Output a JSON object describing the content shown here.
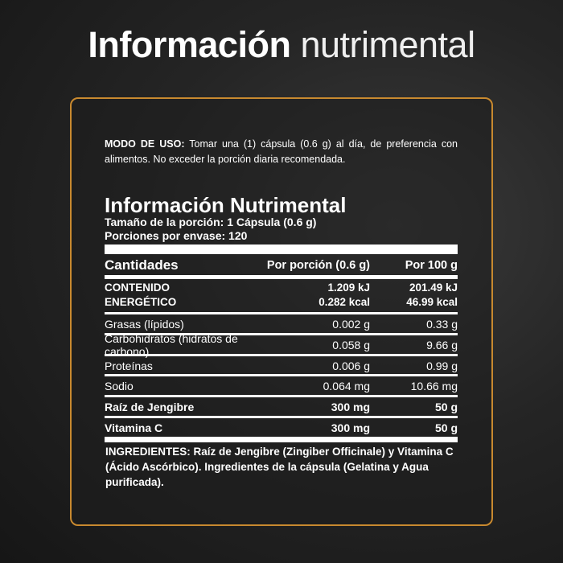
{
  "title": {
    "bold": "Información",
    "light": "nutrimental"
  },
  "accent_color": "#c8892f",
  "usage": {
    "label": "MODO DE USO:",
    "text": " Tomar una (1) cápsula (0.6 g) al día, de preferencia con alimentos. No exceder la porción diaria recomendada."
  },
  "label": {
    "heading": "Información Nutrimental",
    "serving_size": "Tamaño de la porción: 1 Cápsula (0.6 g)",
    "servings": "Porciones por envase: 120",
    "columns": [
      "Cantidades",
      "Por porción (0.6 g)",
      "Por 100 g"
    ],
    "energy": {
      "name1": "CONTENIDO",
      "name2": "ENERGÉTICO",
      "a1": "1.209 kJ",
      "a2": "0.282 kcal",
      "b1": "201.49 kJ",
      "b2": "46.99 kcal"
    },
    "rows": [
      {
        "name": "Grasas (lípidos)",
        "per_serving": "0.002 g",
        "per_100": "0.33 g"
      },
      {
        "name": "Carbohidratos (hidratos de carbono)",
        "per_serving": "0.058 g",
        "per_100": "9.66 g"
      },
      {
        "name": "Proteínas",
        "per_serving": "0.006 g",
        "per_100": "0.99 g"
      },
      {
        "name": "Sodio",
        "per_serving": "0.064 mg",
        "per_100": "10.66 mg"
      },
      {
        "name": "Raíz de Jengibre",
        "per_serving": "300 mg",
        "per_100": "50 g"
      },
      {
        "name": "Vitamina C",
        "per_serving": "300 mg",
        "per_100": "50 g"
      }
    ],
    "ingredients": "INGREDIENTES: Raíz de Jengibre (Zingiber Officinale) y Vitamina C (Ácido Ascórbico). Ingredientes de la cápsula (Gelatina y Agua purificada)."
  }
}
